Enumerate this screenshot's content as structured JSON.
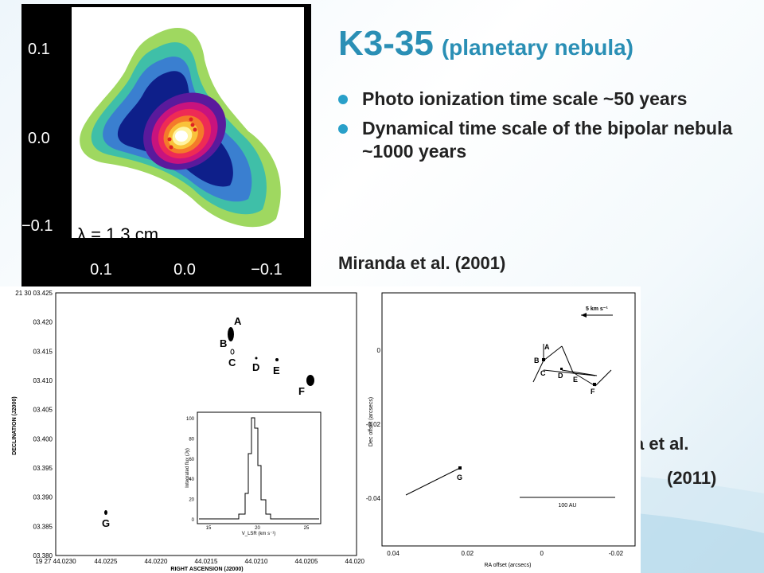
{
  "slide": {
    "title_main": "K3-35",
    "title_sub": "(planetary nebula)",
    "bullets": [
      "Photo ionization time scale ~50 years",
      "Dynamical time scale of the bipolar nebula ~1000 years"
    ],
    "credit_miranda": "Miranda et al. (2001)",
    "credit_tafoya_1": "Tafoya et al.",
    "credit_tafoya_2": "(2011)"
  },
  "contour_map": {
    "y_ticks": [
      "0.1",
      "0.0",
      "−0.1"
    ],
    "x_ticks": [
      "0.1",
      "0.0",
      "−0.1"
    ],
    "wavelength_label": "λ = 1.3 cm"
  },
  "maser_map": {
    "y_ticks": [
      "21 30 03.425",
      "03.420",
      "03.415",
      "03.410",
      "03.405",
      "03.400",
      "03.395",
      "03.390",
      "03.385",
      "03.380"
    ],
    "x_ticks": [
      "19 27 44.0230",
      "44.0225",
      "44.0220",
      "44.0215",
      "44.0210",
      "44.0205",
      "44.0200"
    ],
    "ylabel": "DECLINATION (J2000)",
    "xlabel": "RIGHT ASCENSION (J2000)",
    "spots": [
      "A",
      "B",
      "C",
      "D",
      "E",
      "F",
      "G"
    ],
    "inset": {
      "ylabel": "Integrated flux (Jy)",
      "xlabel": "V_LSR (km s⁻¹)",
      "x_ticks": [
        "15",
        "20",
        "25"
      ],
      "y_ticks": [
        "0",
        "20",
        "40",
        "60",
        "80",
        "100"
      ]
    }
  },
  "proper_motion_map": {
    "y_ticks": [
      "0",
      "-0.02",
      "-0.04"
    ],
    "x_ticks": [
      "0.04",
      "0.02",
      "0",
      "-0.02"
    ],
    "ylabel": "Dec offset (arcsecs)",
    "xlabel": "RA offset (arcsecs)",
    "velocity_scale": "5 km s⁻¹",
    "length_scale": "100 AU",
    "spots": [
      "A",
      "B",
      "C",
      "D",
      "E",
      "F",
      "G"
    ]
  }
}
